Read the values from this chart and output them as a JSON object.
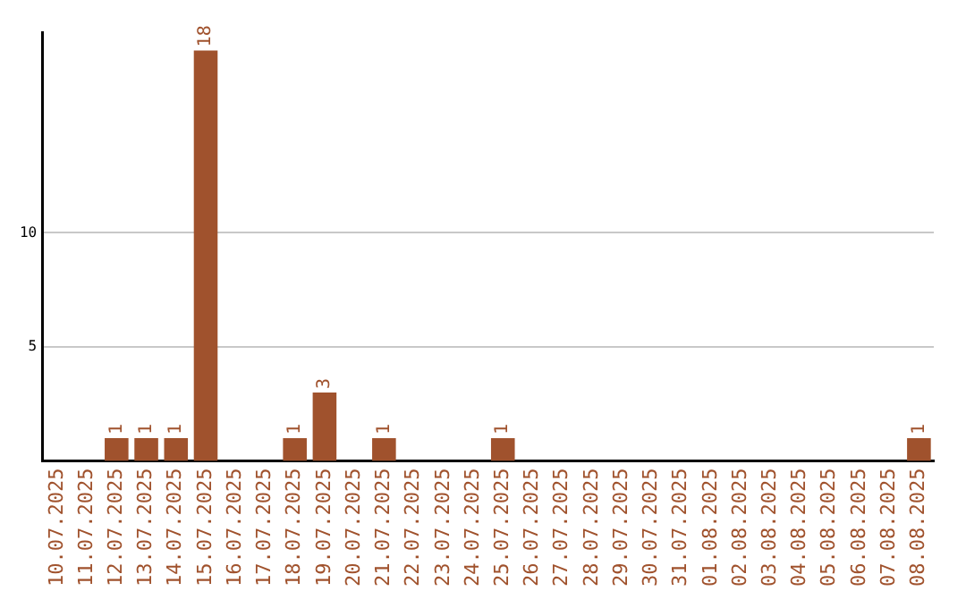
{
  "chart_data": {
    "type": "bar",
    "categories": [
      "10.07.2025",
      "11.07.2025",
      "12.07.2025",
      "13.07.2025",
      "14.07.2025",
      "15.07.2025",
      "16.07.2025",
      "17.07.2025",
      "18.07.2025",
      "19.07.2025",
      "20.07.2025",
      "21.07.2025",
      "22.07.2025",
      "23.07.2025",
      "24.07.2025",
      "25.07.2025",
      "26.07.2025",
      "27.07.2025",
      "28.07.2025",
      "29.07.2025",
      "30.07.2025",
      "31.07.2025",
      "01.08.2025",
      "02.08.2025",
      "03.08.2025",
      "04.08.2025",
      "05.08.2025",
      "06.08.2025",
      "07.08.2025",
      "08.08.2025"
    ],
    "values": [
      0,
      0,
      1,
      1,
      1,
      18,
      0,
      0,
      1,
      3,
      0,
      1,
      0,
      0,
      0,
      1,
      0,
      0,
      0,
      0,
      0,
      0,
      0,
      0,
      0,
      0,
      0,
      0,
      0,
      1
    ],
    "value_labels": [
      null,
      null,
      "1",
      "1",
      "1",
      "18",
      null,
      null,
      "1",
      "3",
      null,
      "1",
      null,
      null,
      null,
      "1",
      null,
      null,
      null,
      null,
      null,
      null,
      null,
      null,
      null,
      null,
      null,
      null,
      null,
      "1"
    ],
    "color": "#a0522d",
    "ylim": [
      0,
      18.8
    ],
    "yticks": [
      5,
      10
    ],
    "grid": "y",
    "legend": false
  }
}
